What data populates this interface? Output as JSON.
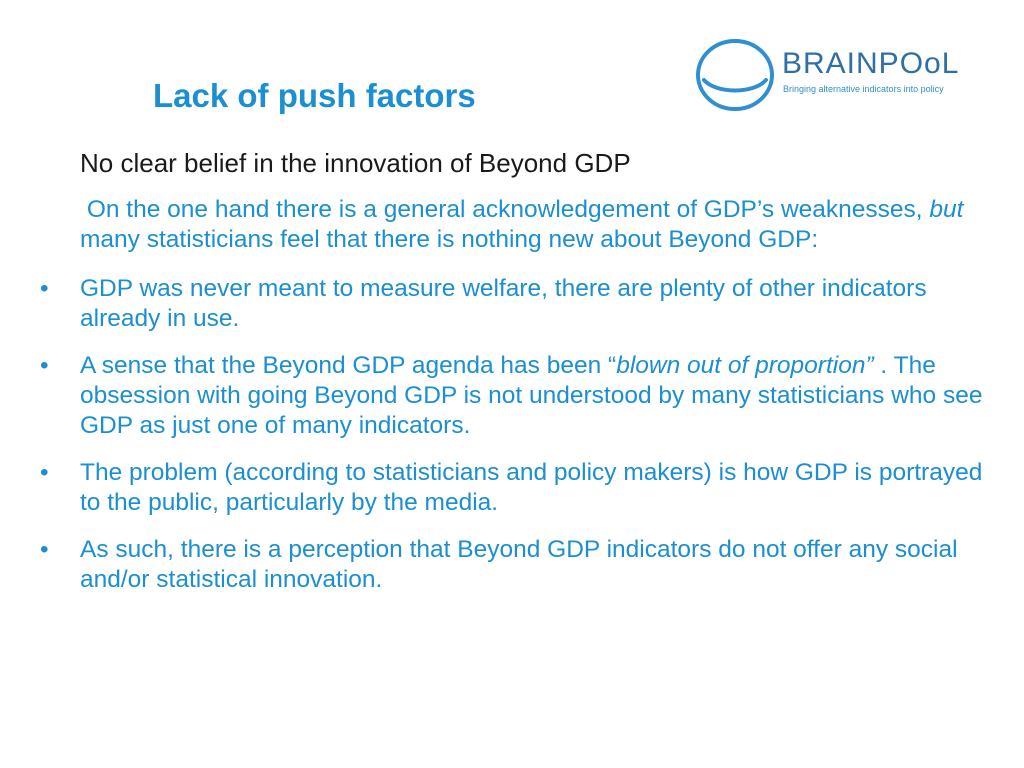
{
  "slide": {
    "title": "Lack of push factors",
    "subheading": "No clear belief in the innovation of Beyond GDP",
    "intro": {
      "part1": "On the one hand there is a general acknowledgement of GDP’s weaknesses, ",
      "italic": "but",
      "part2": " many statisticians feel that there is nothing new about Beyond GDP:"
    },
    "bullet_glyph": "•",
    "bullets": [
      {
        "text": "GDP was never meant to measure welfare, there are plenty of other indicators already in use."
      },
      {
        "part1": "A sense that the Beyond GDP agenda has been “",
        "italic": "blown out of proportion”",
        "part2": " . The obsession with going Beyond GDP is not understood by many statisticians who see GDP as just one of many indicators."
      },
      {
        "text": "The problem (according to statisticians and policy makers) is how GDP is portrayed to the public, particularly by the media."
      },
      {
        "text": "As such, there is a perception that Beyond GDP indicators do not offer any social and/or statistical innovation."
      }
    ]
  },
  "logo": {
    "name": "BRAINPOoL",
    "tagline": "Bringing alternative indicators into policy",
    "colors": {
      "ring": "#2f8fd0",
      "text": "#2f6fa8"
    }
  }
}
